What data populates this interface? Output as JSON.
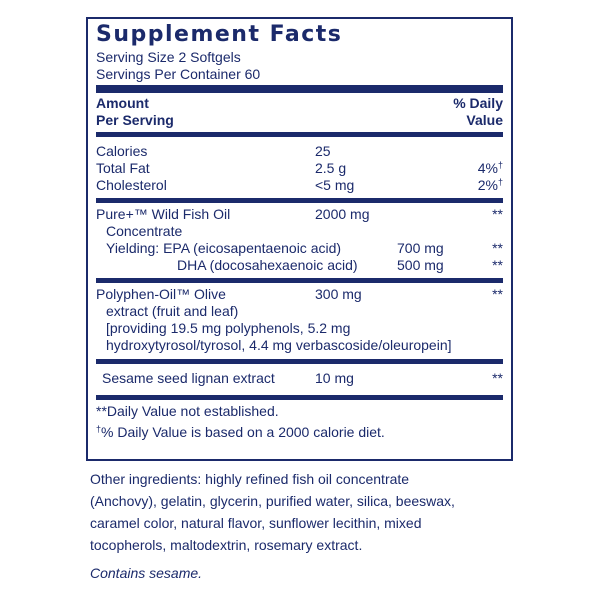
{
  "title": "Supplement Facts",
  "serving_size": "Serving Size 2 Softgels",
  "servings_per_container": "Servings Per Container 60",
  "header": {
    "amount_1": "Amount",
    "amount_2": "Per Serving",
    "dv_1": "% Daily",
    "dv_2": "Value"
  },
  "basic": [
    {
      "name": "Calories",
      "amount": "25",
      "dv": ""
    },
    {
      "name": "Total Fat",
      "amount": "2.5 g",
      "dv": "4%",
      "mark": "†"
    },
    {
      "name": "Cholesterol",
      "amount": "<5 mg",
      "dv": "2%",
      "mark": "†"
    }
  ],
  "fish_oil": {
    "name_1": "Pure+™ Wild Fish Oil",
    "name_2": "Concentrate",
    "amount": "2000 mg",
    "dv": "**",
    "yielding_label": "Yielding: EPA (eicosapentaenoic acid)",
    "epa_amount": "700 mg",
    "epa_dv": "**",
    "dha_label": "DHA (docosahexaenoic acid)",
    "dha_amount": "500 mg",
    "dha_dv": "**"
  },
  "olive": {
    "name_1": "Polyphen-Oil™ Olive",
    "name_2": "extract (fruit and leaf)",
    "amount": "300 mg",
    "dv": "**",
    "detail_1": "[providing 19.5 mg polyphenols, 5.2 mg",
    "detail_2": "hydroxytyrosol/tyrosol, 4.4 mg verbascoside/oleuropein]"
  },
  "sesame": {
    "name": "Sesame seed lignan extract",
    "amount": "10 mg",
    "dv": "**"
  },
  "notes": {
    "n1": "**Daily Value not established.",
    "n2_mark": "†",
    "n2": "% Daily Value is based on a 2000 calorie diet."
  },
  "other_ingredients": [
    "Other ingredients: highly refined fish oil concentrate",
    "(Anchovy), gelatin, glycerin, purified water, silica, beeswax,",
    "caramel color, natural flavor, sunflower lecithin, mixed",
    "tocopherols, maltodextrin, rosemary extract."
  ],
  "contains": "Contains sesame.",
  "colors": {
    "ink": "#1b2a6b",
    "background": "#ffffff"
  }
}
